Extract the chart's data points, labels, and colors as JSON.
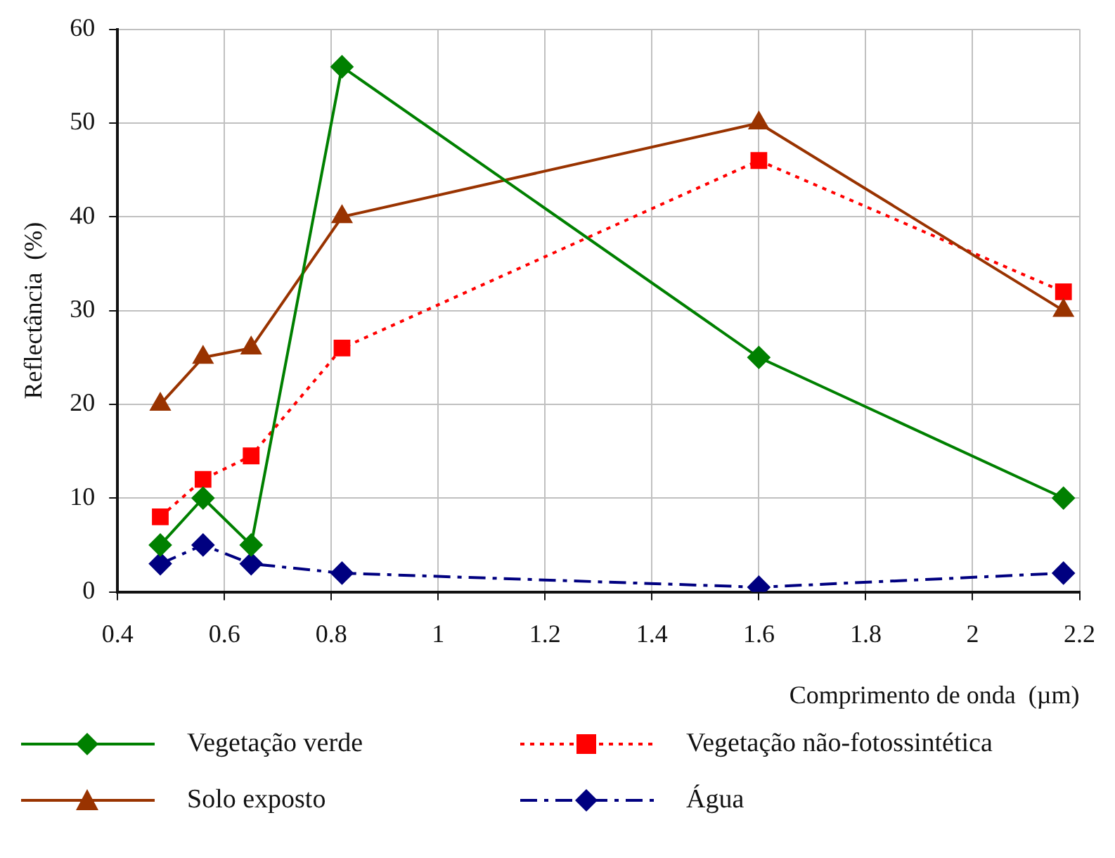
{
  "chart_data": {
    "type": "line",
    "xlabel": "Comprimento de onda  (µm)",
    "ylabel": "Reflectância  (%)",
    "x": [
      0.48,
      0.56,
      0.65,
      0.82,
      1.6,
      2.17
    ],
    "series": [
      {
        "name": "Vegetação verde",
        "color": "#008000",
        "values": [
          5,
          10,
          5,
          56,
          25,
          10
        ],
        "marker": "diamond",
        "line_style": "solid"
      },
      {
        "name": "Solo exposto",
        "color": "#993300",
        "values": [
          20,
          25,
          26,
          40,
          50,
          30
        ],
        "marker": "triangle",
        "line_style": "solid"
      },
      {
        "name": "Vegetação não-fotossintética",
        "color": "#ff0000",
        "values": [
          8,
          12,
          14.5,
          26,
          46,
          32
        ],
        "marker": "square",
        "line_style": "dotted"
      },
      {
        "name": "Água",
        "color": "#000080",
        "values": [
          3,
          5,
          3,
          2,
          0.5,
          2
        ],
        "marker": "diamond",
        "line_style": "dashed"
      }
    ],
    "xlim": [
      0.4,
      2.2
    ],
    "xticks": [
      0.4,
      0.6,
      0.8,
      1,
      1.2,
      1.4,
      1.6,
      1.8,
      2,
      2.2
    ],
    "ylim": [
      0,
      60
    ],
    "yticks": [
      0,
      10,
      20,
      30,
      40,
      50,
      60
    ],
    "grid": true,
    "legend": "bottom"
  }
}
